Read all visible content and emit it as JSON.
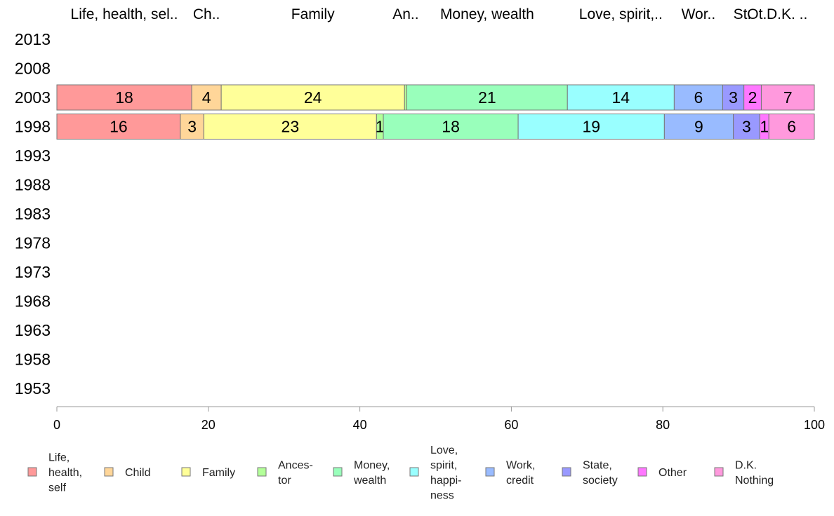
{
  "chart_data": {
    "type": "bar",
    "orientation": "horizontal",
    "stacked": true,
    "years": [
      "2013",
      "2008",
      "2003",
      "1998",
      "1993",
      "1988",
      "1983",
      "1978",
      "1973",
      "1968",
      "1963",
      "1958",
      "1953"
    ],
    "categories_full": [
      "Life, health, self",
      "Child",
      "Family",
      "Ancestor",
      "Money, wealth",
      "Love, spirit, happiness",
      "Work, credit",
      "State, society",
      "Other",
      "D.K. Nothing"
    ],
    "top_labels": [
      "Life, health, sel..",
      "Ch..",
      "Family",
      "An..",
      "Money, wealth",
      "Love, spirit,..",
      "Wor..",
      "St.",
      "Ot..",
      "D.K. .."
    ],
    "legend_labels": [
      [
        "Life,",
        "health,",
        "self"
      ],
      [
        "Child"
      ],
      [
        "Family"
      ],
      [
        "Ances-",
        "tor"
      ],
      [
        "Money,",
        "wealth"
      ],
      [
        "Love,",
        "spirit,",
        "happi-",
        "ness"
      ],
      [
        "Work,",
        "credit"
      ],
      [
        "State,",
        "society"
      ],
      [
        "Other"
      ],
      [
        "D.K.",
        "Nothing"
      ]
    ],
    "colors": [
      "#ff9999",
      "#ffd699",
      "#ffff99",
      "#b3ff99",
      "#99ffbb",
      "#99ffff",
      "#99bbff",
      "#9999ff",
      "#ff77ff",
      "#ff99dd"
    ],
    "series_by_year": {
      "2003": {
        "values": [
          17.8,
          3.9,
          24.2,
          0.3,
          21.2,
          14.1,
          6.4,
          2.8,
          2.3,
          7.0
        ],
        "labels": [
          "18",
          "4",
          "24",
          "",
          "21",
          "14",
          "6",
          "3",
          "2",
          "7"
        ]
      },
      "1998": {
        "values": [
          16.3,
          3.1,
          22.8,
          0.9,
          17.8,
          19.3,
          9.1,
          3.5,
          1.2,
          6.0
        ],
        "labels": [
          "16",
          "3",
          "23",
          "1",
          "18",
          "19",
          "9",
          "3",
          "1",
          "6"
        ]
      }
    },
    "xlim": [
      0,
      100
    ],
    "xticks": [
      0,
      20,
      40,
      60,
      80,
      100
    ]
  }
}
